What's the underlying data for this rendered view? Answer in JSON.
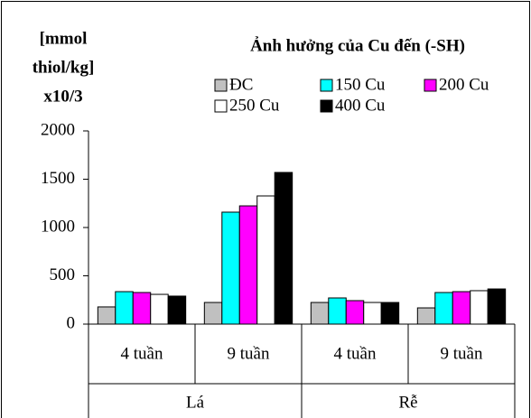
{
  "chart_data": {
    "type": "bar",
    "title": "Ảnh hưởng của Cu đến (-SH)",
    "y_label_lines": [
      "[mmol",
      "thiol/kg]",
      "x10/3"
    ],
    "categories": [
      "4 tuần",
      "9 tuần",
      "4 tuần",
      "9 tuần"
    ],
    "groups": [
      "Lá",
      "Rễ"
    ],
    "series": [
      {
        "name": "ĐC",
        "color": "#c0c0c0",
        "values": [
          178,
          224,
          224,
          168
        ]
      },
      {
        "name": "150 Cu",
        "color": "#00ffff",
        "values": [
          336,
          1159,
          271,
          327
        ]
      },
      {
        "name": "200 Cu",
        "color": "#ff00ff",
        "values": [
          327,
          1224,
          243,
          336
        ]
      },
      {
        "name": "250 Cu",
        "color": "#ffffff",
        "values": [
          308,
          1327,
          224,
          346
        ]
      },
      {
        "name": "400 Cu",
        "color": "#000000",
        "values": [
          290,
          1570,
          224,
          364
        ]
      }
    ],
    "ylim": [
      0,
      2000
    ],
    "yticks": [
      0,
      500,
      1000,
      1500,
      2000
    ],
    "grid": false
  }
}
